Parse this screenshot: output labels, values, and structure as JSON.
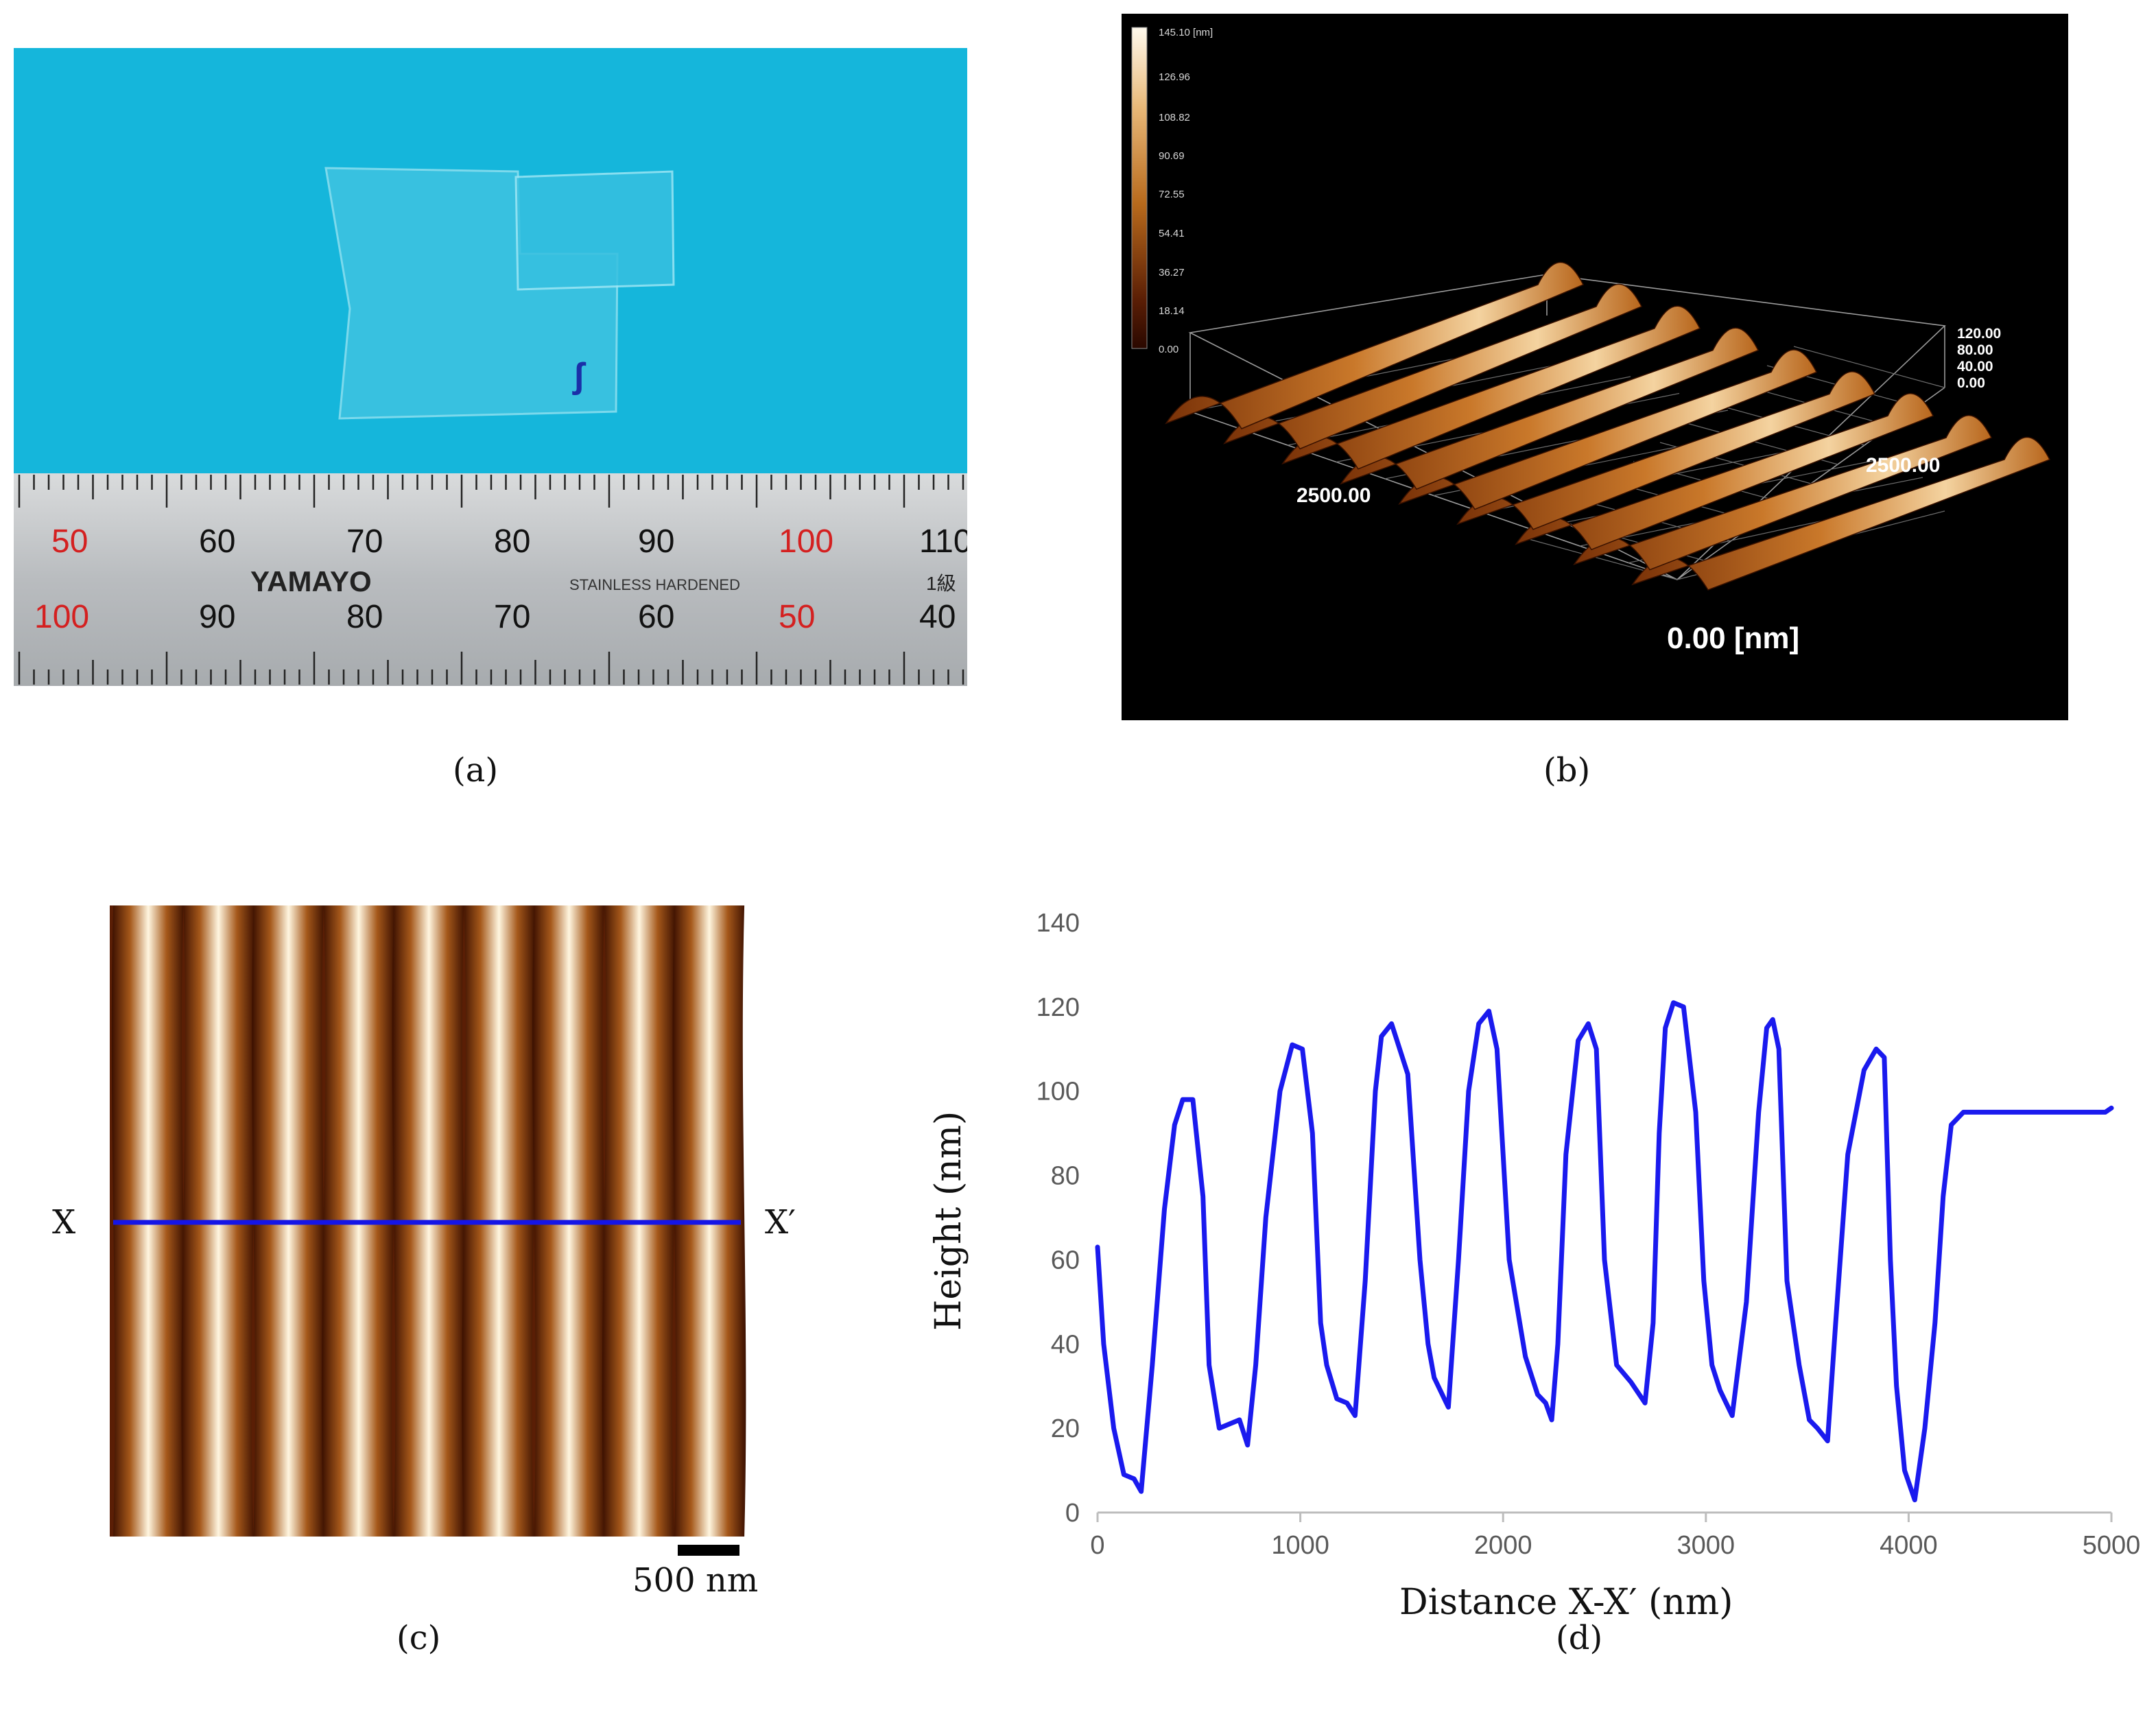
{
  "captions": {
    "a": "(a)",
    "b": "(b)",
    "c": "(c)",
    "d": "(d)"
  },
  "panel_a": {
    "ruler_top_numbers": [
      "50",
      "60",
      "70",
      "80",
      "90",
      "100",
      "110"
    ],
    "ruler_bottom_numbers": [
      "100",
      "90",
      "80",
      "70",
      "60",
      "50",
      "40"
    ],
    "brand": "YAMAYO",
    "stamp": "STAINLESS HARDENED",
    "grade": "1級",
    "marker": "ʃ"
  },
  "panel_b": {
    "colorbar_unit": "145.10 [nm]",
    "colorbar_ticks": [
      "126.96",
      "108.82",
      "90.69",
      "72.55",
      "54.41",
      "36.27",
      "18.14",
      "0.00"
    ],
    "z_ticks": [
      "120.00",
      "80.00",
      "40.00",
      "0.00"
    ],
    "x_label": "2500.00",
    "y_label": "2500.00",
    "origin_label": "0.00 [nm]"
  },
  "panel_c": {
    "left_label": "X",
    "right_label": "X′",
    "scalebar_label": "500 nm"
  },
  "chart_data": {
    "type": "line",
    "title": "",
    "xlabel": "Distance X-X′ (nm)",
    "ylabel": "Height (nm)",
    "xlim": [
      0,
      5000
    ],
    "ylim": [
      0,
      140
    ],
    "x_ticks": [
      "0",
      "1000",
      "2000",
      "3000",
      "4000",
      "5000"
    ],
    "y_ticks": [
      "0",
      "20",
      "40",
      "60",
      "80",
      "100",
      "120",
      "140"
    ],
    "grid": false,
    "series": [
      {
        "name": "profile",
        "color": "#1a1aee",
        "x": [
          0,
          30,
          80,
          130,
          180,
          215,
          270,
          330,
          380,
          420,
          470,
          520,
          550,
          600,
          650,
          700,
          740,
          780,
          830,
          900,
          960,
          1010,
          1060,
          1100,
          1130,
          1180,
          1230,
          1270,
          1320,
          1370,
          1400,
          1450,
          1530,
          1590,
          1630,
          1660,
          1690,
          1730,
          1780,
          1830,
          1880,
          1930,
          1970,
          2030,
          2110,
          2170,
          2210,
          2240,
          2270,
          2310,
          2370,
          2420,
          2460,
          2500,
          2560,
          2630,
          2700,
          2740,
          2770,
          2800,
          2840,
          2890,
          2950,
          2990,
          3030,
          3070,
          3130,
          3200,
          3260,
          3300,
          3330,
          3360,
          3400,
          3460,
          3510,
          3550,
          3600,
          3640,
          3700,
          3780,
          3840,
          3880,
          3910,
          3940,
          3980,
          4030,
          4080,
          4130,
          4170,
          4210,
          4270,
          4350,
          4420,
          4460,
          4490,
          4520,
          4560,
          4600,
          4640,
          4690,
          4740,
          4790,
          4830,
          4880,
          4930,
          4970,
          5000
        ],
        "values": [
          63,
          40,
          20,
          9,
          8,
          5,
          35,
          72,
          92,
          98,
          98,
          75,
          35,
          20,
          21,
          22,
          16,
          35,
          70,
          100,
          111,
          110,
          90,
          45,
          35,
          27,
          26,
          23,
          55,
          100,
          113,
          116,
          104,
          60,
          40,
          32,
          29,
          25,
          60,
          100,
          116,
          119,
          110,
          60,
          37,
          28,
          26,
          22,
          40,
          85,
          112,
          116,
          110,
          60,
          35,
          31,
          26,
          45,
          90,
          115,
          121,
          120,
          95,
          55,
          35,
          29,
          23,
          50,
          95,
          115,
          117,
          110,
          55,
          35,
          22,
          20,
          17,
          45,
          85,
          105,
          110,
          108,
          60,
          30,
          10,
          3,
          20,
          45,
          75,
          92,
          95,
          95,
          95,
          95,
          95,
          95,
          95,
          95,
          95,
          95,
          95,
          95,
          95,
          95,
          95,
          95,
          96
        ]
      }
    ]
  }
}
